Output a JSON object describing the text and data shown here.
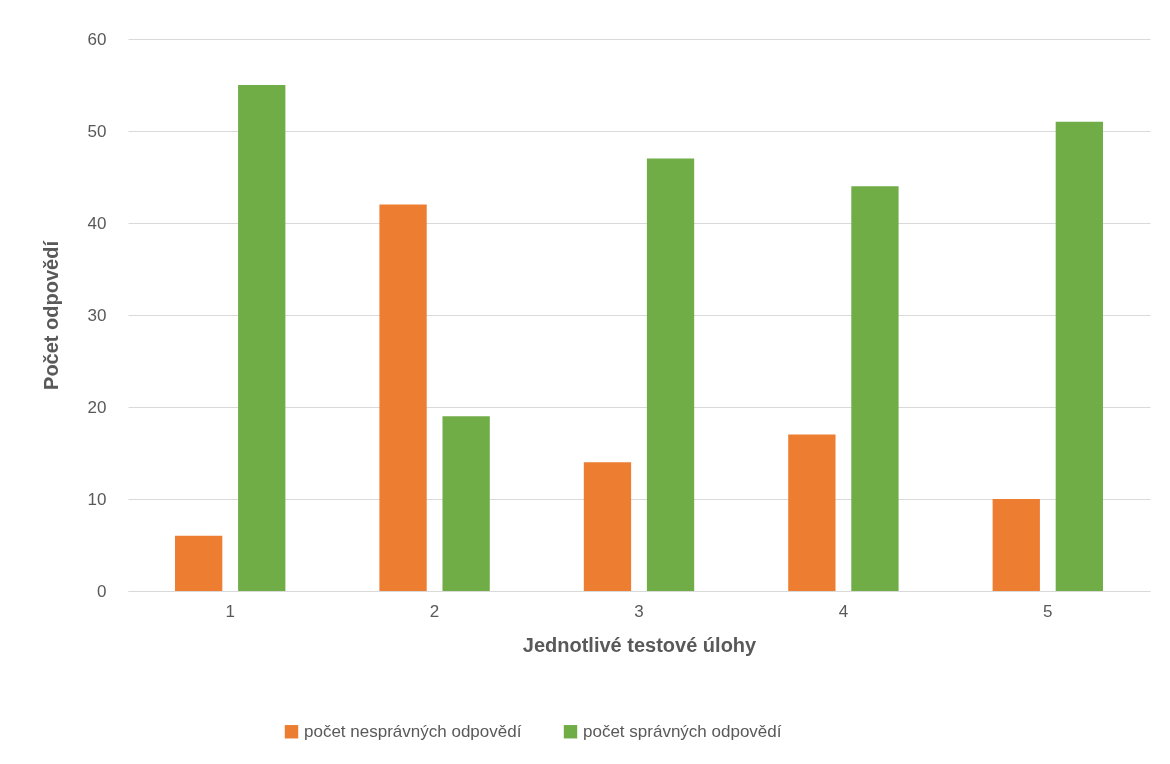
{
  "chart_data": {
    "type": "bar",
    "xlabel": "Jednotlivé testové úlohy",
    "ylabel": "Počet odpovědí",
    "categories": [
      "1",
      "2",
      "3",
      "4",
      "5"
    ],
    "series": [
      {
        "name": "počet nesprávných odpovědí",
        "color": "#ed7d31",
        "values": [
          6,
          42,
          14,
          17,
          10
        ]
      },
      {
        "name": "počet správných odpovědí",
        "color": "#70ad47",
        "values": [
          55,
          19,
          47,
          44,
          51
        ]
      }
    ],
    "ylim": [
      0,
      60
    ],
    "yticks": [
      0,
      10,
      20,
      30,
      40,
      50,
      60
    ],
    "grid": "y",
    "legend": "bottom"
  }
}
